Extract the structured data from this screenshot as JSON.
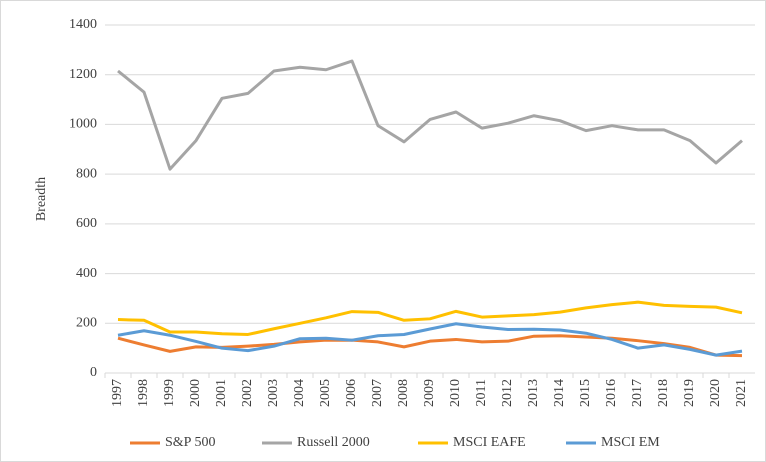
{
  "chart_data": {
    "type": "line",
    "y_label": "Breadth",
    "categories": [
      "1997",
      "1998",
      "1999",
      "2000",
      "2001",
      "2002",
      "2003",
      "2004",
      "2005",
      "2006",
      "2007",
      "2008",
      "2009",
      "2010",
      "2011",
      "2012",
      "2013",
      "2014",
      "2015",
      "2016",
      "2017",
      "2018",
      "2019",
      "2020",
      "2021"
    ],
    "series": [
      {
        "name": "S&P 500",
        "color": "#ed7d31",
        "values": [
          140,
          113,
          87,
          105,
          103,
          108,
          115,
          125,
          132,
          132,
          125,
          105,
          128,
          135,
          125,
          128,
          148,
          150,
          145,
          140,
          130,
          118,
          103,
          72,
          70
        ]
      },
      {
        "name": "Russell 2000",
        "color": "#a5a5a5",
        "values": [
          1215,
          1130,
          820,
          935,
          1105,
          1125,
          1215,
          1230,
          1220,
          1255,
          995,
          930,
          1020,
          1050,
          985,
          1005,
          1035,
          1015,
          975,
          995,
          978,
          978,
          935,
          845,
          935
        ]
      },
      {
        "name": "MSCI EAFE",
        "color": "#ffc000",
        "values": [
          215,
          212,
          165,
          165,
          158,
          155,
          178,
          200,
          222,
          247,
          244,
          212,
          218,
          248,
          225,
          230,
          235,
          245,
          262,
          275,
          285,
          272,
          268,
          265,
          242
        ]
      },
      {
        "name": "MSCI EM",
        "color": "#5b9bd5",
        "values": [
          152,
          170,
          152,
          127,
          100,
          90,
          108,
          138,
          140,
          132,
          150,
          155,
          177,
          198,
          185,
          175,
          176,
          173,
          160,
          135,
          100,
          113,
          95,
          72,
          88
        ]
      }
    ],
    "ylim": [
      0,
      1400
    ],
    "yticks": [
      0,
      200,
      400,
      600,
      800,
      1000,
      1200,
      1400
    ],
    "grid": true,
    "legend": "bottom"
  }
}
